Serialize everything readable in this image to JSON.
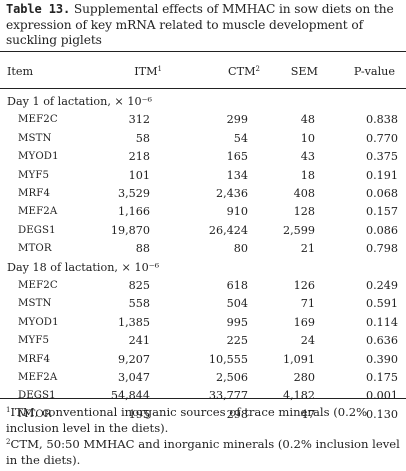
{
  "caption": {
    "label": "Table 13.",
    "text": "Supplemental effects of MMHAC in sow diets on the expression of key mRNA related to muscle development of suckling piglets"
  },
  "header": {
    "item": "Item",
    "itm": "ITM",
    "itm_sup": "1",
    "ctm": "CTM",
    "ctm_sup": "2",
    "sem": "SEM",
    "p": "P-value"
  },
  "sections": [
    {
      "title": "Day 1 of lactation, × 10⁻⁶",
      "rows": [
        {
          "item": "MEF2C",
          "itm": "312",
          "ctm": "299",
          "sem": "48",
          "p": "0.838"
        },
        {
          "item": "MSTN",
          "itm": "58",
          "ctm": "54",
          "sem": "10",
          "p": "0.770"
        },
        {
          "item": "MYOD1",
          "itm": "218",
          "ctm": "165",
          "sem": "43",
          "p": "0.375"
        },
        {
          "item": "MYF5",
          "itm": "101",
          "ctm": "134",
          "sem": "18",
          "p": "0.191"
        },
        {
          "item": "MRF4",
          "itm": "3,529",
          "ctm": "2,436",
          "sem": "408",
          "p": "0.068"
        },
        {
          "item": "MEF2A",
          "itm": "1,166",
          "ctm": "910",
          "sem": "128",
          "p": "0.157"
        },
        {
          "item": "DEGS1",
          "itm": "19,870",
          "ctm": "26,424",
          "sem": "2,599",
          "p": "0.086"
        },
        {
          "item": "MTOR",
          "itm": "88",
          "ctm": "80",
          "sem": "21",
          "p": "0.798"
        }
      ]
    },
    {
      "title": "Day 18 of lactation, × 10⁻⁶",
      "rows": [
        {
          "item": "MEF2C",
          "itm": "825",
          "ctm": "618",
          "sem": "126",
          "p": "0.249"
        },
        {
          "item": "MSTN",
          "itm": "558",
          "ctm": "504",
          "sem": "71",
          "p": "0.591"
        },
        {
          "item": "MYOD1",
          "itm": "1,385",
          "ctm": "995",
          "sem": "169",
          "p": "0.114"
        },
        {
          "item": "MYF5",
          "itm": "241",
          "ctm": "225",
          "sem": "24",
          "p": "0.636"
        },
        {
          "item": "MRF4",
          "itm": "9,207",
          "ctm": "10,555",
          "sem": "1,091",
          "p": "0.390"
        },
        {
          "item": "MEF2A",
          "itm": "3,047",
          "ctm": "2,506",
          "sem": "280",
          "p": "0.175"
        },
        {
          "item": "DEGS1",
          "itm": "54,844",
          "ctm": "33,777",
          "sem": "4,182",
          "p": "0.001"
        },
        {
          "item": "MTOR",
          "itm": "195",
          "ctm": "298",
          "sem": "47",
          "p": "0.130"
        }
      ]
    }
  ],
  "footnotes": [
    {
      "sup": "1",
      "text": "ITM, conventional inorganic sources of trace minerals (0.2% inclusion level in the diets)."
    },
    {
      "sup": "2",
      "text": "CTM, 50:50 MMHAC and inorganic minerals (0.2% inclusion level in the diets)."
    }
  ]
}
